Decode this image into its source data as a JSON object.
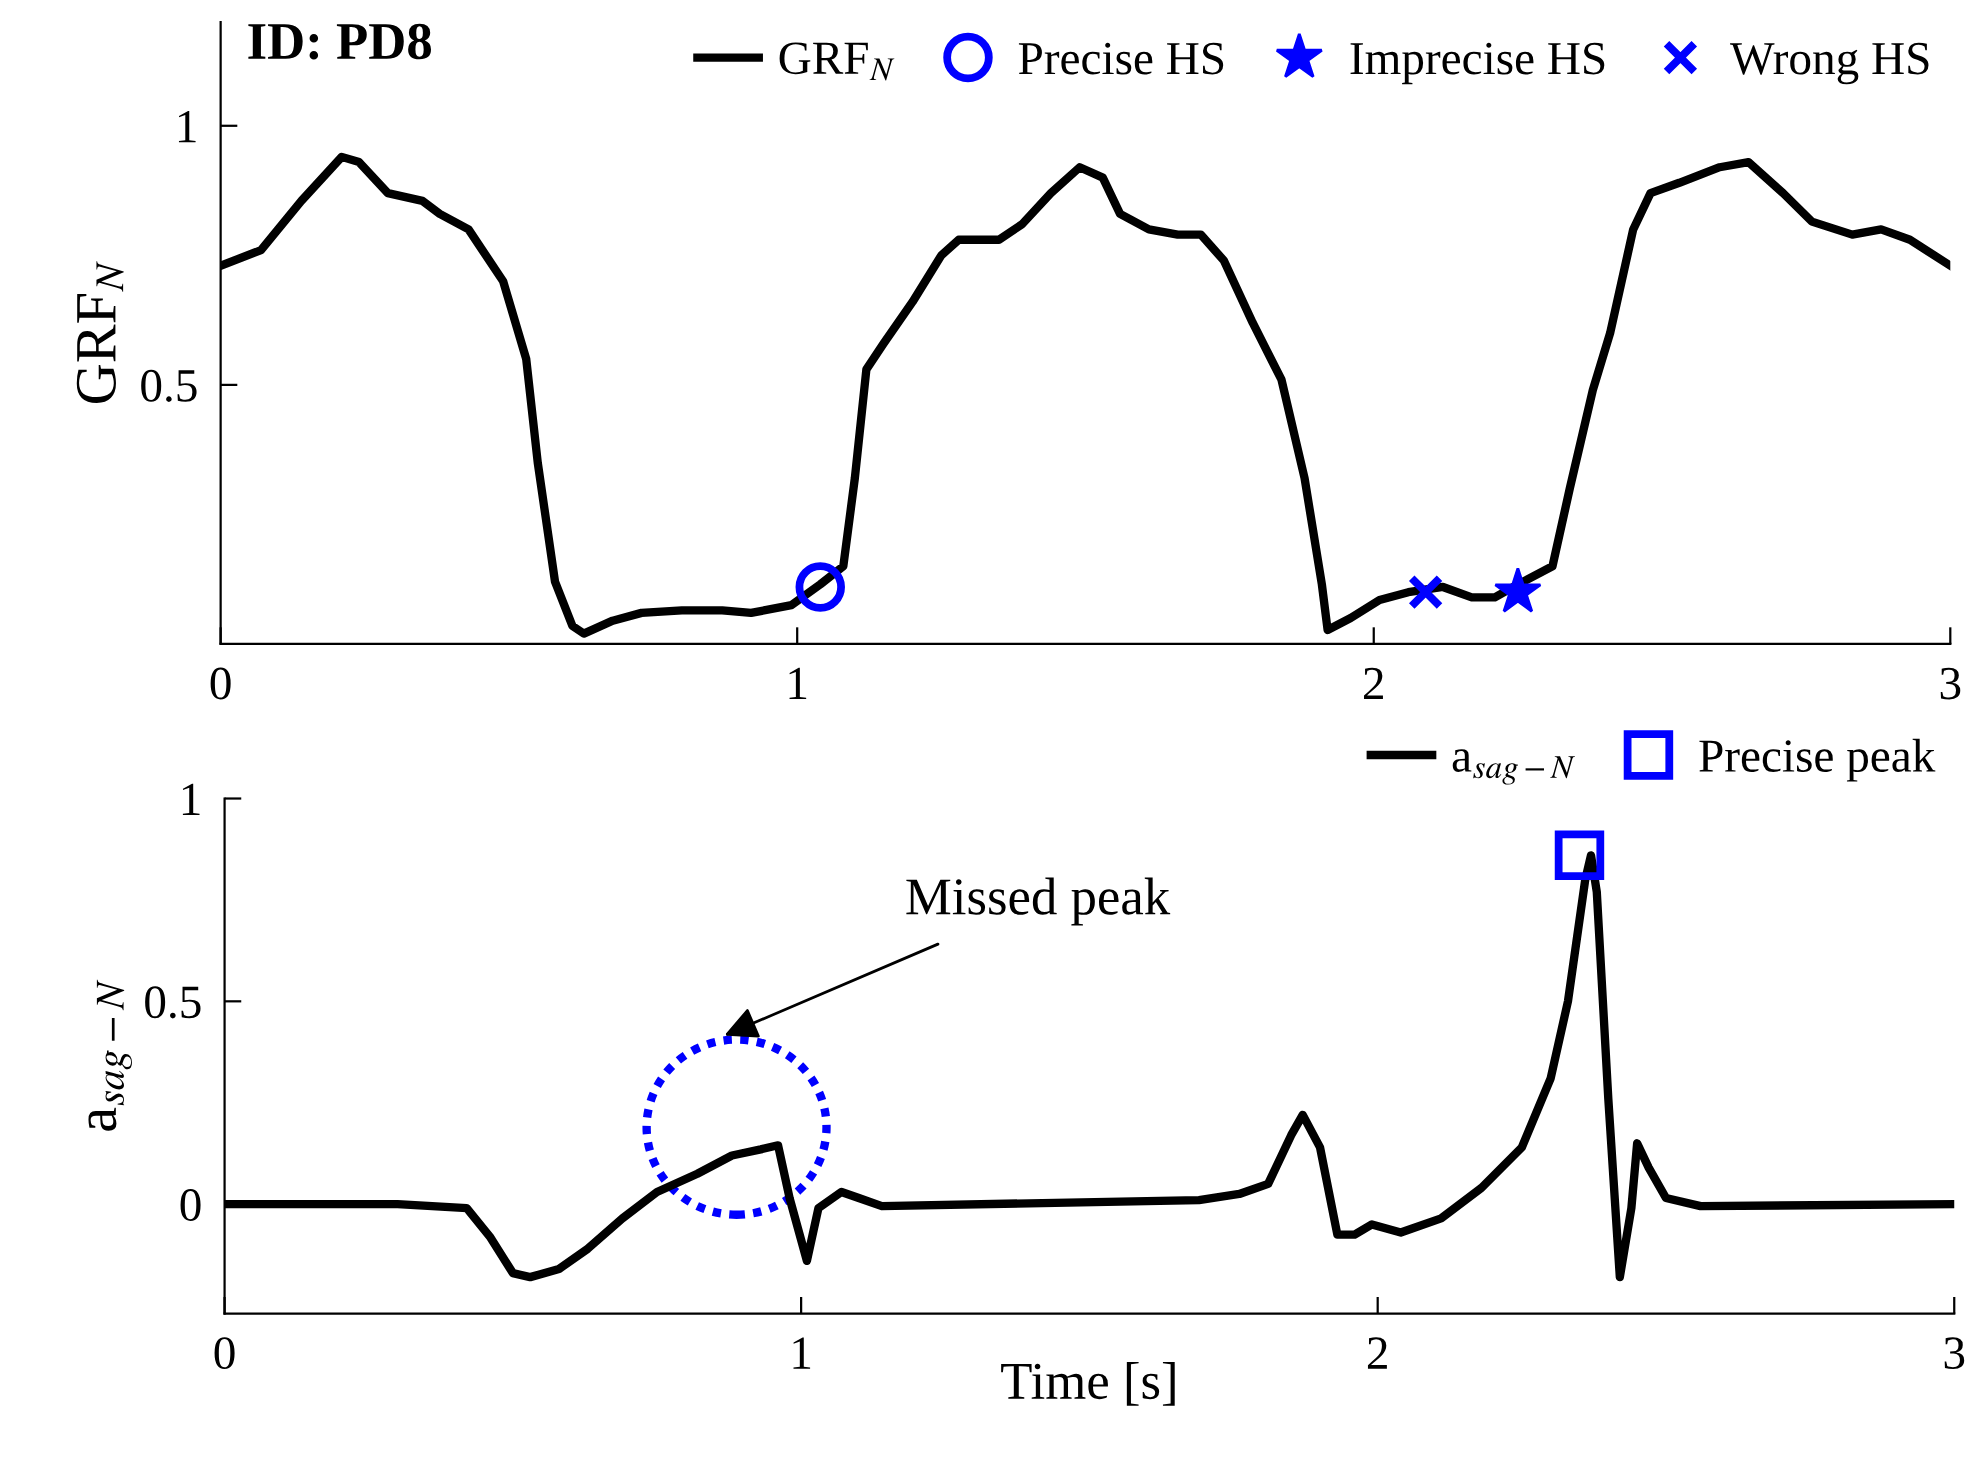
{
  "chart_data": [
    {
      "type": "line",
      "title": "ID: PD8",
      "ylabel": "GRF$_{N}$",
      "xlim": [
        0,
        3
      ],
      "xticks": [
        0,
        1,
        2,
        3
      ],
      "ylim": [
        0,
        1.2
      ],
      "yticks": [
        0.5,
        1
      ],
      "grid": false,
      "legend": "top right",
      "series": [
        {
          "name": "GRF$_{N}$",
          "color": "#000000",
          "marker": "none",
          "x": [
            0,
            0.07,
            0.14,
            0.21,
            0.24,
            0.29,
            0.35,
            0.38,
            0.43,
            0.49,
            0.53,
            0.55,
            0.58,
            0.61,
            0.63,
            0.68,
            0.73,
            0.8,
            0.87,
            0.92,
            0.99,
            1.04,
            1.08,
            1.1,
            1.12,
            1.15,
            1.2,
            1.25,
            1.28,
            1.35,
            1.39,
            1.44,
            1.49,
            1.53,
            1.56,
            1.61,
            1.66,
            1.7,
            1.74,
            1.79,
            1.84,
            1.88,
            1.91,
            1.92,
            1.96,
            2.01,
            2.06,
            2.12,
            2.17,
            2.21,
            2.25,
            2.31,
            2.34,
            2.38,
            2.41,
            2.45,
            2.48,
            2.53,
            2.6,
            2.65,
            2.71,
            2.76,
            2.83,
            2.88,
            2.93,
            3.0
          ],
          "values": [
            0.73,
            0.76,
            0.855,
            0.94,
            0.93,
            0.87,
            0.855,
            0.83,
            0.8,
            0.7,
            0.55,
            0.35,
            0.12,
            0.035,
            0.02,
            0.045,
            0.06,
            0.065,
            0.065,
            0.06,
            0.075,
            0.115,
            0.15,
            0.32,
            0.53,
            0.58,
            0.66,
            0.75,
            0.78,
            0.78,
            0.81,
            0.87,
            0.92,
            0.9,
            0.83,
            0.8,
            0.79,
            0.79,
            0.74,
            0.62,
            0.51,
            0.32,
            0.115,
            0.027,
            0.05,
            0.085,
            0.1,
            0.11,
            0.09,
            0.09,
            0.115,
            0.15,
            0.3,
            0.49,
            0.6,
            0.8,
            0.87,
            0.89,
            0.92,
            0.93,
            0.87,
            0.815,
            0.79,
            0.8,
            0.78,
            0.73
          ]
        },
        {
          "name": "Precise HS",
          "type": "scatter",
          "color": "#0000ff",
          "marker": "circle",
          "x": [
            1.04
          ],
          "values": [
            0.11
          ]
        },
        {
          "name": "Imprecise HS",
          "type": "scatter",
          "color": "#0000ff",
          "marker": "star",
          "x": [
            2.25
          ],
          "values": [
            0.1
          ]
        },
        {
          "name": "Wrong HS",
          "type": "scatter",
          "color": "#0000ff",
          "marker": "cross",
          "x": [
            2.09
          ],
          "values": [
            0.1
          ]
        }
      ]
    },
    {
      "type": "line",
      "xlabel": "Time [s]",
      "ylabel": "a$_{sag−N}$",
      "xlim": [
        0,
        3
      ],
      "xticks": [
        0,
        1,
        2,
        3
      ],
      "ylim": [
        -0.27,
        1
      ],
      "yticks": [
        0,
        0.5,
        1
      ],
      "grid": false,
      "legend": "top right",
      "annotations": [
        "Missed peak"
      ],
      "series": [
        {
          "name": "a$_{sag−N}$",
          "color": "#000000",
          "marker": "none",
          "x": [
            0,
            0.3,
            0.42,
            0.46,
            0.5,
            0.53,
            0.58,
            0.63,
            0.69,
            0.75,
            0.82,
            0.88,
            0.93,
            0.96,
            0.98,
            1.01,
            1.03,
            1.07,
            1.1,
            1.14,
            1.69,
            1.76,
            1.81,
            1.85,
            1.87,
            1.9,
            1.93,
            1.96,
            1.99,
            2.04,
            2.11,
            2.18,
            2.25,
            2.3,
            2.33,
            2.36,
            2.37,
            2.38,
            2.4,
            2.42,
            2.44,
            2.45,
            2.47,
            2.5,
            2.56,
            3.0
          ],
          "values": [
            0,
            0,
            -0.01,
            -0.08,
            -0.17,
            -0.18,
            -0.16,
            -0.11,
            -0.035,
            0.03,
            0.075,
            0.12,
            0.135,
            0.145,
            0.015,
            -0.14,
            -0.01,
            0.03,
            0.015,
            -0.005,
            0.01,
            0.025,
            0.05,
            0.17,
            0.22,
            0.14,
            -0.075,
            -0.075,
            -0.05,
            -0.07,
            -0.035,
            0.04,
            0.14,
            0.31,
            0.5,
            0.8,
            0.86,
            0.77,
            0.26,
            -0.18,
            -0.01,
            0.15,
            0.09,
            0.015,
            -0.005,
            0
          ]
        },
        {
          "name": "Precise peak",
          "type": "scatter",
          "color": "#0000ff",
          "marker": "square",
          "x": [
            2.35
          ],
          "values": [
            0.86
          ]
        }
      ]
    }
  ]
}
